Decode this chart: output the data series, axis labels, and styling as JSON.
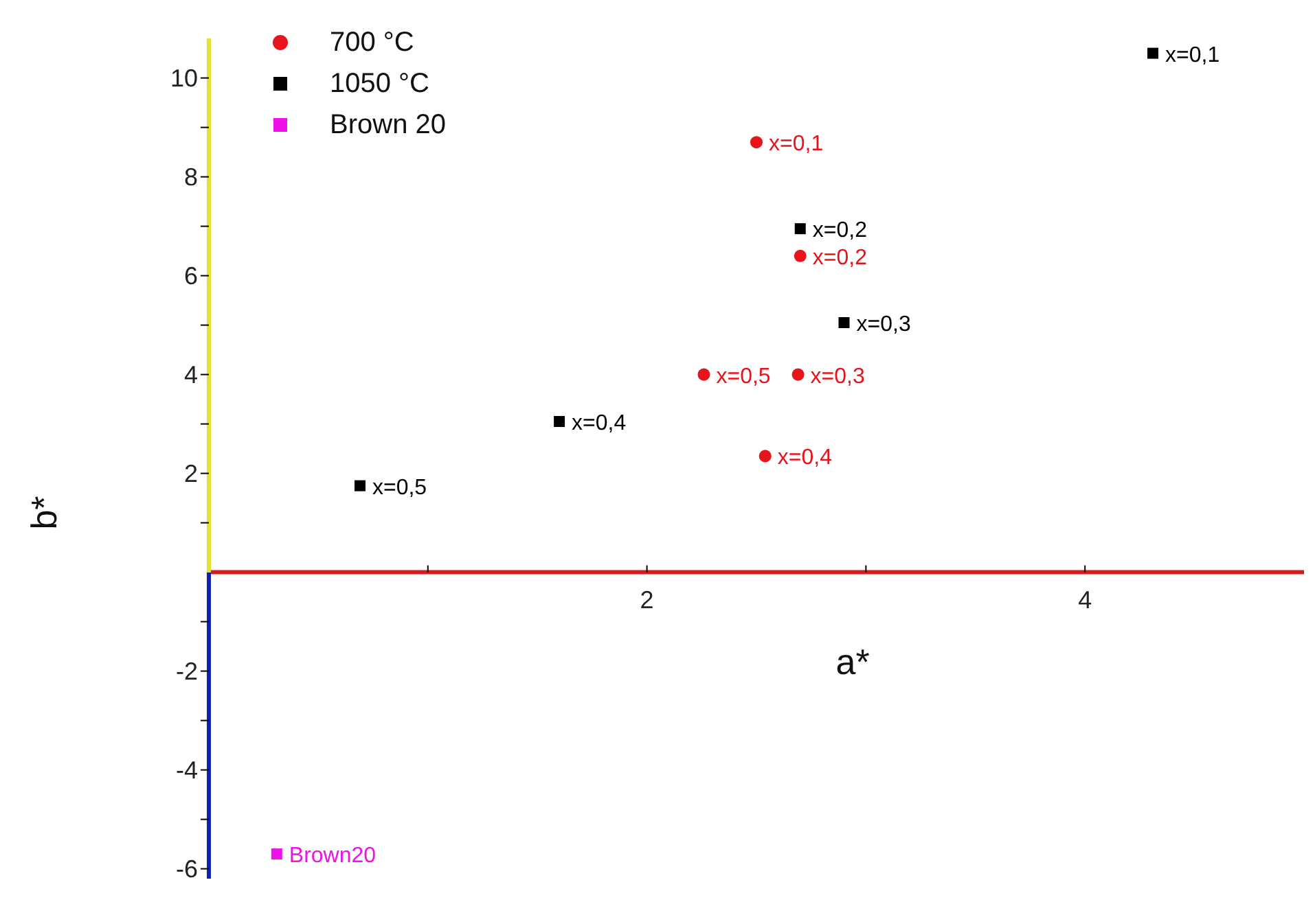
{
  "chart_data": {
    "type": "scatter",
    "xlabel": "a*",
    "ylabel": "b*",
    "xlim": [
      0,
      5
    ],
    "ylim": [
      -6.2,
      10.8
    ],
    "xticks": [
      {
        "value": 1,
        "label": null
      },
      2,
      {
        "value": 3,
        "label": null
      },
      4
    ],
    "yticks": [
      -6,
      {
        "value": -5,
        "label": null
      },
      -4,
      {
        "value": -3,
        "label": null
      },
      -2,
      {
        "value": -1,
        "label": null
      },
      {
        "value": 1,
        "label": null
      },
      2,
      {
        "value": 3,
        "label": null
      },
      4,
      {
        "value": 5,
        "label": null
      },
      6,
      {
        "value": 7,
        "label": null
      },
      8,
      {
        "value": 9,
        "label": null
      },
      10
    ],
    "grid": false,
    "legend": "top left",
    "series": [
      {
        "name": "700 °C",
        "color": "#e8141c",
        "marker": "circle",
        "x": [
          2.5,
          2.7,
          2.69,
          2.54,
          2.26
        ],
        "values": [
          8.7,
          6.4,
          4.0,
          2.35,
          4.0
        ]
      },
      {
        "name": "1050 °C",
        "color": "#000000",
        "marker": "square",
        "x": [
          4.31,
          2.7,
          2.9,
          1.6,
          0.69
        ],
        "values": [
          10.5,
          6.95,
          5.05,
          3.05,
          1.75
        ]
      },
      {
        "name": "Brown 20",
        "color": "#ee12e8",
        "marker": "square",
        "x": [
          0.31
        ],
        "values": [
          -5.7
        ]
      }
    ],
    "annotations": [
      {
        "text": "x=0,1",
        "x": 2.5,
        "y": 8.7
      },
      {
        "text": "x=0,2",
        "x": 2.7,
        "y": 6.4
      },
      {
        "text": "x=0,3",
        "x": 2.69,
        "y": 4.0
      },
      {
        "text": "x=0,4",
        "x": 2.54,
        "y": 2.35
      },
      {
        "text": "x=0,5",
        "x": 2.26,
        "y": 4.0
      },
      {
        "text": "x=0,1",
        "x": 4.31,
        "y": 10.5
      },
      {
        "text": "x=0,2",
        "x": 2.7,
        "y": 6.95
      },
      {
        "text": "x=0,3",
        "x": 2.9,
        "y": 5.05
      },
      {
        "text": "x=0,4",
        "x": 1.6,
        "y": 3.05
      },
      {
        "text": "x=0,5",
        "x": 0.69,
        "y": 1.75
      },
      {
        "text": "Brown20",
        "x": 0.31,
        "y": -5.7
      }
    ]
  }
}
